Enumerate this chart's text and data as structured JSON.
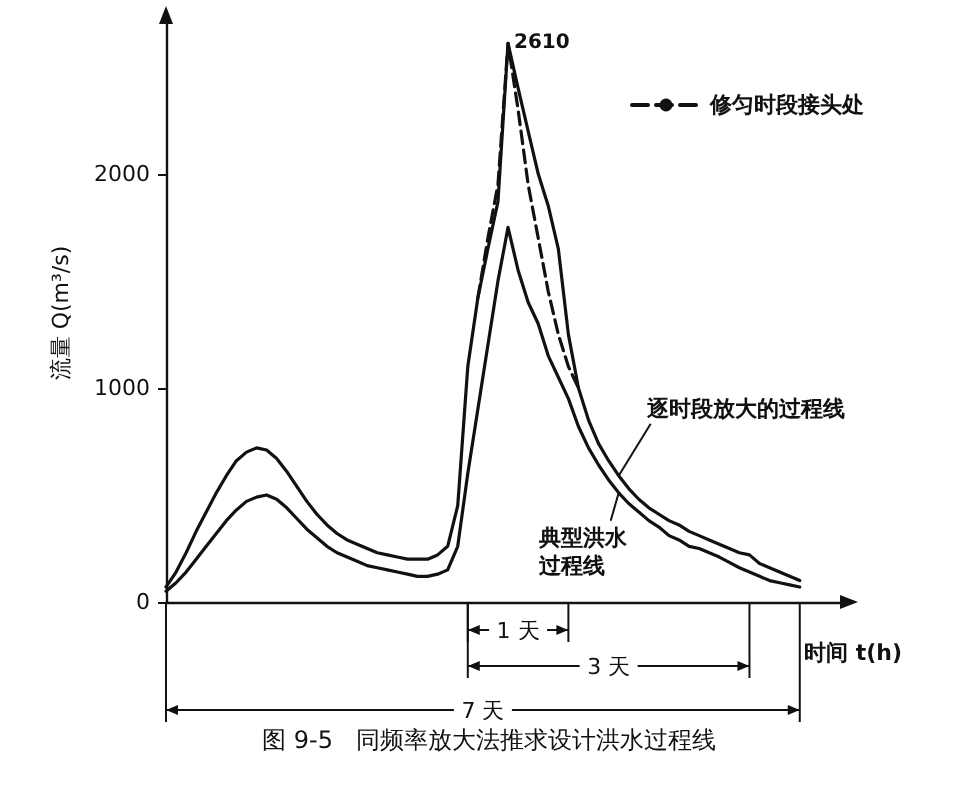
{
  "chart_data": {
    "type": "line",
    "title": "图 9-5   同频率放大法推求设计洪水过程线",
    "xlabel": "时间 t(h)",
    "ylabel": "流量 Q(m³/s)",
    "categories": [
      null,
      null,
      null,
      null,
      null,
      null,
      null,
      null,
      null,
      null,
      null,
      null,
      null,
      null,
      null,
      null,
      null,
      null,
      null,
      null,
      null,
      null,
      null,
      null,
      null,
      null,
      null,
      null,
      null,
      null,
      null,
      null,
      null,
      null,
      null,
      null,
      null,
      null,
      null,
      null,
      null,
      null,
      null,
      null,
      null,
      null,
      null,
      null,
      null,
      null,
      null,
      null,
      null,
      null,
      null,
      null,
      null,
      null,
      null,
      null,
      null,
      null,
      null,
      null,
      null,
      null,
      null,
      null
    ],
    "series": [
      {
        "name": "逐时段放大的过程线",
        "color": "#111111",
        "values": [
          70,
          140,
          230,
          330,
          420,
          510,
          590,
          660,
          700,
          720,
          710,
          670,
          610,
          540,
          470,
          410,
          360,
          320,
          290,
          270,
          250,
          230,
          220,
          210,
          200,
          200,
          200,
          220,
          260,
          450,
          1100,
          1420,
          1650,
          1870,
          2610,
          2400,
          2200,
          2000,
          1850,
          1650,
          1250,
          1000,
          850,
          740,
          660,
          590,
          530,
          480,
          440,
          410,
          380,
          360,
          330,
          310,
          290,
          270,
          250,
          230,
          220,
          180,
          160,
          140,
          120,
          100,
          null,
          null,
          null,
          null
        ],
        "value_labels": [
          null,
          null,
          null,
          null,
          null,
          null,
          null,
          null,
          null,
          null,
          null,
          null,
          null,
          null,
          null,
          null,
          null,
          null,
          null,
          null,
          null,
          null,
          null,
          null,
          null,
          null,
          null,
          null,
          null,
          null,
          null,
          null,
          null,
          null,
          "2610",
          null,
          null,
          null,
          null,
          null,
          null,
          null,
          null,
          null,
          null,
          null,
          null,
          null,
          null,
          null,
          null,
          null,
          null,
          null,
          null,
          null,
          null,
          null,
          null,
          null,
          null,
          null,
          null,
          null,
          null,
          null,
          null,
          null
        ]
      },
      {
        "name": "典型洪水过程线",
        "color": "#111111",
        "values": [
          50,
          90,
          140,
          200,
          260,
          320,
          380,
          430,
          470,
          490,
          500,
          480,
          440,
          390,
          340,
          300,
          260,
          230,
          210,
          190,
          170,
          160,
          150,
          140,
          130,
          120,
          120,
          130,
          150,
          260,
          600,
          900,
          1200,
          1500,
          1750,
          1550,
          1400,
          1300,
          1150,
          1050,
          950,
          820,
          720,
          640,
          570,
          510,
          460,
          420,
          380,
          350,
          310,
          290,
          260,
          250,
          230,
          210,
          185,
          160,
          140,
          120,
          100,
          90,
          80,
          70,
          null,
          null,
          null,
          null
        ]
      },
      {
        "name": "修匀时段接头处",
        "color": "#111111",
        "line_style": "dashed",
        "values": [
          null,
          null,
          null,
          null,
          null,
          null,
          null,
          null,
          null,
          null,
          null,
          null,
          null,
          null,
          null,
          null,
          null,
          null,
          null,
          null,
          null,
          null,
          null,
          null,
          null,
          null,
          null,
          null,
          null,
          null,
          null,
          1420,
          1700,
          1950,
          2610,
          2300,
          1950,
          1700,
          1450,
          1250,
          1100,
          1000,
          null,
          null,
          null,
          null,
          null,
          null,
          null,
          null,
          null,
          null,
          null,
          null,
          null,
          null,
          null,
          null,
          null,
          null,
          null,
          null,
          null,
          null,
          null,
          null,
          null,
          null
        ]
      }
    ],
    "ylim": [
      0,
      2700
    ],
    "yticks": [
      0,
      1000,
      2000
    ],
    "tick_labels": "y",
    "grid": false,
    "legend": "top right",
    "marker": "none",
    "annotations": [
      "1 天",
      "3 天",
      "7 天"
    ]
  }
}
